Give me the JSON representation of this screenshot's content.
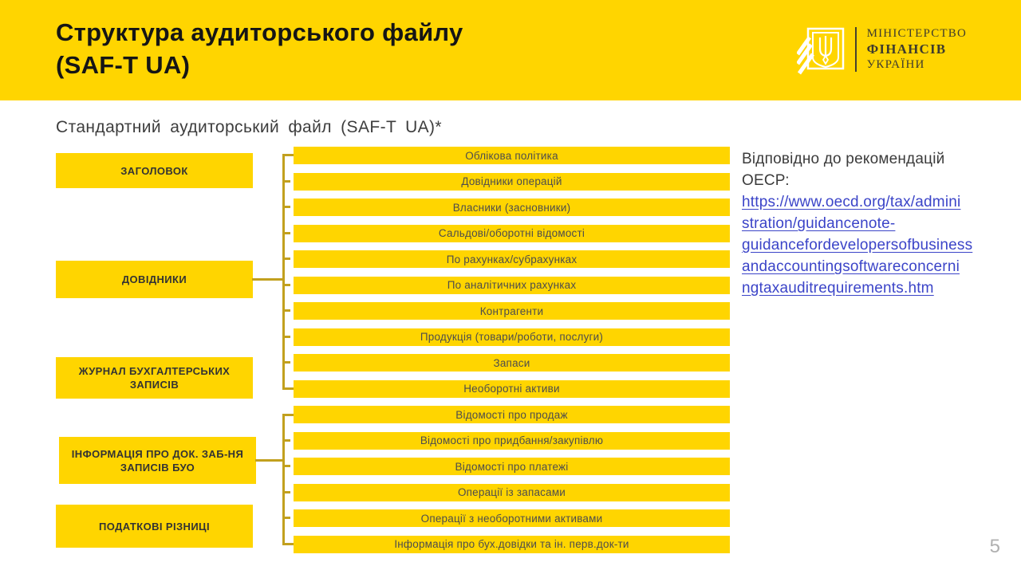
{
  "slide": {
    "title_line1": "Структура аудиторського файлу",
    "title_line2": "(SAF-T UA)",
    "subtitle": "Стандартний аудиторський файл (SAF-T UA)*",
    "page_number": "5"
  },
  "logo": {
    "icon": "ukraine-trident-icon",
    "line1": "МІНІСТЕРСТВО",
    "line2": "ФІНАНСІВ",
    "line3": "УКРАЇНИ"
  },
  "diagram": {
    "left_boxes": [
      {
        "label": "ЗАГОЛОВОК"
      },
      {
        "label": "ДОВІДНИКИ"
      },
      {
        "label": "ЖУРНАЛ БУХГАЛТЕРСЬКИХ ЗАПИСІВ"
      },
      {
        "label": "ІНФОРМАЦІЯ ПРО ДОК. ЗАБ-НЯ ЗАПИСІВ БУО"
      },
      {
        "label": "ПОДАТКОВІ РІЗНИЦІ"
      }
    ],
    "group1_bars": [
      "Облікова політика",
      "Довідники операцій",
      "Власники (засновники)",
      "Сальдові/оборотні відомості",
      "По рахунках/субрахунках",
      "По аналітичних рахунках",
      "Контрагенти",
      "Продукція (товари/роботи, послуги)",
      "Запаси",
      "Необоротні активи"
    ],
    "group2_bars": [
      "Відомості про продаж",
      "Відомості про придбання/закупівлю",
      "Відомості про платежі",
      "Операції із запасами",
      "Операції з необоротними активами",
      "Інформація про бух.довідки та ін. перв.док-ти"
    ]
  },
  "note": {
    "line1": "Відповідно до рекомендацій",
    "line2": "ОЕСР:",
    "link_lines": [
      "https://www.oecd.org/tax/admini",
      "stration/guidancenote-",
      "guidancefordevelopersofbusiness",
      "andaccountingsoftwareconcerni",
      "ngtaxauditrequirements.htm"
    ],
    "link_url": "https://www.oecd.org/tax/administration/guidancenote-guidancefordevelopersofbusinessandaccountingsoftwareconcerningtaxauditrequirements.htm"
  },
  "colors": {
    "brand_yellow": "#FFD500",
    "connector_gold": "#C2A01E",
    "link_blue": "#3B44C8"
  }
}
